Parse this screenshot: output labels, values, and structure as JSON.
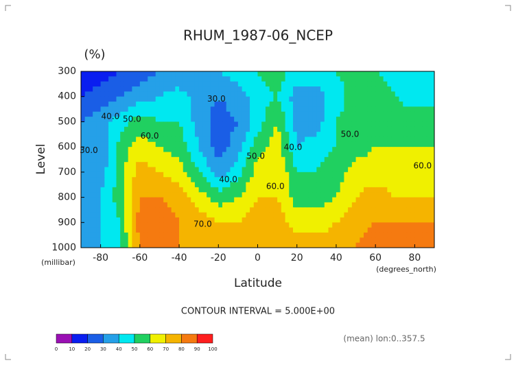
{
  "chart_data": {
    "type": "contour",
    "title": "RHUM_1987-06_NCEP",
    "unit_label": "(%)",
    "y_label": "Level",
    "y_unit_label": "(millibar)",
    "x_label": "Latitude",
    "x_unit_label": "(degrees_north)",
    "contour_interval_text": "CONTOUR INTERVAL = 5.000E+00",
    "mean_text": "(mean) lon:0..357.5",
    "xlim": [
      -90,
      90
    ],
    "ylim": [
      1000,
      300
    ],
    "y_reversed": true,
    "xticks": [
      -80,
      -60,
      -40,
      -20,
      0,
      20,
      40,
      60,
      80
    ],
    "yticks": [
      300,
      400,
      500,
      600,
      700,
      800,
      900,
      1000
    ],
    "x": [
      -90,
      -80,
      -70,
      -60,
      -50,
      -40,
      -30,
      -20,
      -10,
      0,
      10,
      20,
      30,
      40,
      50,
      60,
      70,
      80,
      90
    ],
    "y": [
      300,
      400,
      500,
      600,
      700,
      800,
      900,
      1000
    ],
    "z": [
      [
        10,
        15,
        20,
        25,
        30,
        30,
        35,
        40,
        45,
        50,
        55,
        45,
        45,
        50,
        55,
        50,
        45,
        40,
        40
      ],
      [
        20,
        25,
        30,
        35,
        40,
        45,
        35,
        30,
        35,
        45,
        50,
        35,
        35,
        45,
        55,
        55,
        50,
        45,
        45
      ],
      [
        30,
        35,
        45,
        55,
        50,
        50,
        35,
        25,
        30,
        45,
        60,
        35,
        35,
        50,
        55,
        55,
        55,
        55,
        60
      ],
      [
        30,
        30,
        55,
        65,
        60,
        55,
        40,
        25,
        35,
        55,
        65,
        40,
        45,
        50,
        55,
        60,
        60,
        60,
        60
      ],
      [
        35,
        35,
        55,
        75,
        70,
        65,
        50,
        35,
        45,
        65,
        70,
        50,
        50,
        55,
        65,
        65,
        65,
        65,
        65
      ],
      [
        35,
        40,
        55,
        80,
        80,
        75,
        65,
        55,
        60,
        70,
        70,
        55,
        55,
        60,
        70,
        75,
        70,
        70,
        70
      ],
      [
        35,
        40,
        50,
        85,
        85,
        80,
        75,
        70,
        70,
        75,
        75,
        65,
        65,
        70,
        75,
        80,
        80,
        80,
        80
      ],
      [
        35,
        40,
        50,
        80,
        85,
        80,
        80,
        75,
        75,
        75,
        75,
        75,
        75,
        75,
        80,
        85,
        85,
        90,
        90
      ]
    ],
    "levels": [
      0,
      10,
      20,
      30,
      40,
      50,
      60,
      70,
      80,
      90,
      100
    ],
    "colors": [
      "#9a10b4",
      "#0a1ef0",
      "#1a5ee6",
      "#25a0e8",
      "#00e8f0",
      "#20d060",
      "#f0f000",
      "#f5b400",
      "#f57a10",
      "#ff1e1e"
    ],
    "contour_labels": [
      {
        "x": -86,
        "y": 615,
        "value": 30,
        "label": "30.0"
      },
      {
        "x": -75,
        "y": 480,
        "value": 40,
        "label": "40.0"
      },
      {
        "x": -64,
        "y": 490,
        "value": 50,
        "label": "50.0"
      },
      {
        "x": -55,
        "y": 557,
        "value": 60,
        "label": "60.0"
      },
      {
        "x": -21,
        "y": 410,
        "value": 30,
        "label": "30.0"
      },
      {
        "x": -15,
        "y": 730,
        "value": 40,
        "label": "40.0"
      },
      {
        "x": -1,
        "y": 638,
        "value": 50,
        "label": "50.0"
      },
      {
        "x": 9,
        "y": 757,
        "value": 60,
        "label": "60.0"
      },
      {
        "x": 18,
        "y": 602,
        "value": 40,
        "label": "40.0"
      },
      {
        "x": 47,
        "y": 550,
        "value": 50,
        "label": "50.0"
      },
      {
        "x": 84,
        "y": 676,
        "value": 60,
        "label": "60.0"
      },
      {
        "x": -28,
        "y": 908,
        "value": 70,
        "label": "70.0"
      }
    ]
  }
}
